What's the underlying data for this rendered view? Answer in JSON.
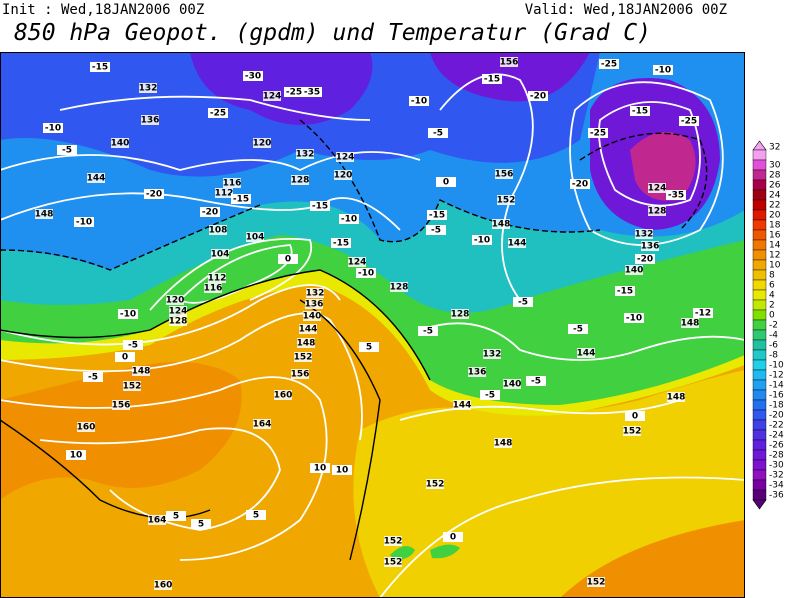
{
  "header": {
    "init": "Init : Wed,18JAN2006 00Z",
    "valid": "Valid: Wed,18JAN2006 00Z",
    "title": "850 hPa Geopot. (gpdm) und Temperatur (Grad C)"
  },
  "colorbar": {
    "labels": [
      32,
      30,
      28,
      26,
      24,
      22,
      20,
      18,
      16,
      14,
      12,
      10,
      8,
      6,
      4,
      2,
      0,
      -2,
      -4,
      -6,
      -8,
      -10,
      -12,
      -14,
      -16,
      -18,
      -20,
      -22,
      -24,
      -26,
      -28,
      -30,
      -32,
      -34,
      -36
    ],
    "colors": [
      "#f4a0f0",
      "#e050d8",
      "#c02890",
      "#a80048",
      "#a00010",
      "#c00000",
      "#e01800",
      "#f03800",
      "#f05800",
      "#f07800",
      "#f09000",
      "#f0a800",
      "#f0c000",
      "#f0d800",
      "#e8e800",
      "#c0e800",
      "#80e000",
      "#40d040",
      "#30c870",
      "#20c0a0",
      "#20c8c8",
      "#20d0e8",
      "#20b8f0",
      "#20a0f0",
      "#2088f0",
      "#2070f0",
      "#3058f0",
      "#4040e8",
      "#5030e0",
      "#6020e0",
      "#7018d8",
      "#8010d0",
      "#9010c0",
      "#7800a0",
      "#580078"
    ]
  },
  "geopotential_labels": [
    132,
    136,
    140,
    144,
    148,
    124,
    120,
    132,
    128,
    124,
    120,
    116,
    112,
    108,
    104,
    104,
    112,
    116,
    120,
    124,
    128,
    132,
    136,
    140,
    144,
    148,
    152,
    156,
    160,
    164,
    148,
    152,
    156,
    160,
    164,
    160,
    152,
    152,
    152,
    124,
    128,
    128,
    132,
    136,
    140,
    144,
    148,
    152,
    148,
    144,
    148,
    140,
    136,
    132,
    128,
    124,
    156,
    156,
    152,
    148,
    144,
    152
  ],
  "temperature_labels": [
    -15,
    -25,
    -30,
    -25,
    -35,
    -10,
    -5,
    -20,
    -10,
    -20,
    -15,
    -15,
    -10,
    -15,
    -10,
    0,
    -10,
    -5,
    0,
    -5,
    10,
    5,
    5,
    5,
    10,
    10,
    -10,
    -15,
    -20,
    -25,
    -10,
    -5,
    -15,
    -25,
    -25,
    -20,
    -35,
    -20,
    -15,
    -10,
    -12,
    -5,
    -5,
    -10,
    -5,
    -15,
    0,
    -5,
    -5,
    -5,
    0,
    0,
    5
  ]
}
